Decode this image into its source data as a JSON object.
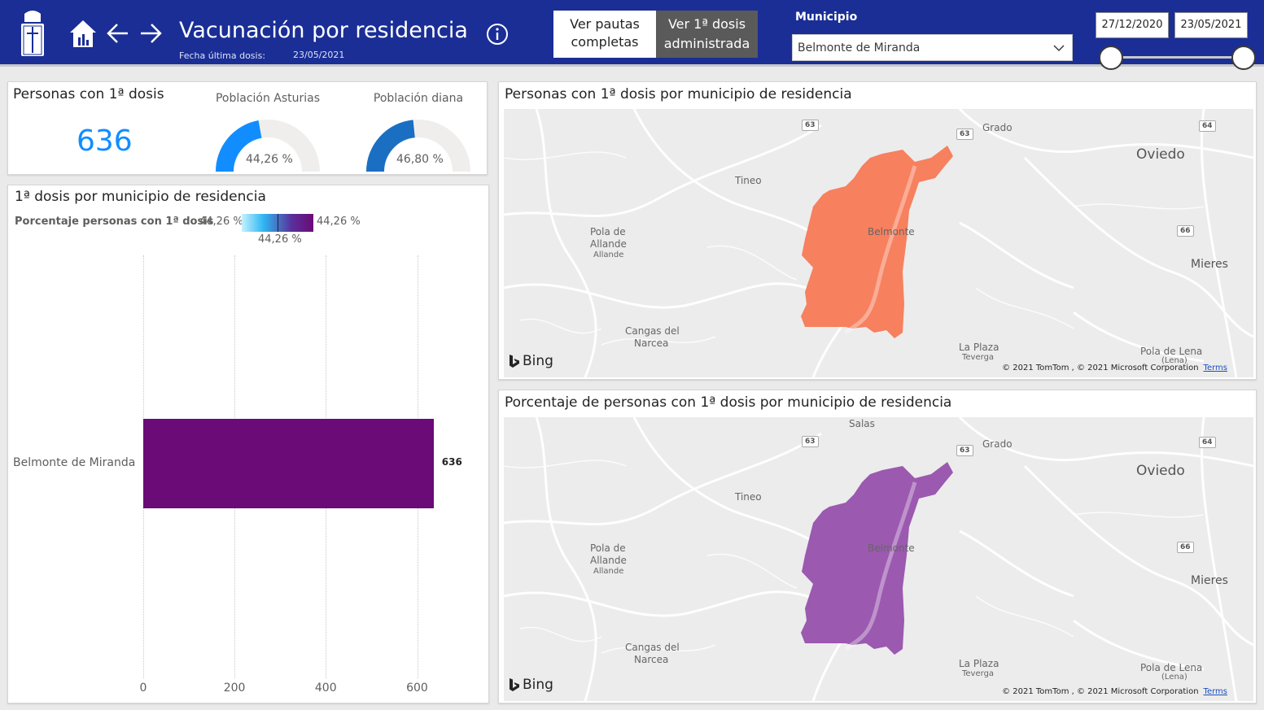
{
  "header": {
    "title": "Vacunación por residencia",
    "last_dose_label": "Fecha última dosis:",
    "last_dose_value": "23/05/2021",
    "btn_full_line1": "Ver pautas",
    "btn_full_line2": "completas",
    "btn_first_line1": "Ver 1ª dosis",
    "btn_first_line2": "administrada",
    "municipio_label": "Municipio",
    "municipio_value": "Belmonte de Miranda",
    "date_start": "27/12/2020",
    "date_end": "23/05/2021",
    "date_slider_start_fraction": 0.0,
    "date_slider_end_fraction": 1.0
  },
  "kpi": {
    "title": "Personas con 1ª dosis",
    "value": "636"
  },
  "gauges": [
    {
      "label": "Población Asturias",
      "value_text": "44,26 %",
      "fraction": 0.4426,
      "color": "#118dff"
    },
    {
      "label": "Población diana",
      "value_text": "46,80 %",
      "fraction": 0.468,
      "color": "#1a6fc2"
    }
  ],
  "bar_panel": {
    "title": "1ª dosis por municipio de residencia",
    "legend_title": "Porcentaje personas con 1ª dosis",
    "legend_min": "44,26 %",
    "legend_max": "44,26 %",
    "legend_mid": "44,26 %"
  },
  "chart_data": {
    "type": "bar",
    "orientation": "horizontal",
    "categories": [
      "Belmonte de Miranda"
    ],
    "values": [
      636
    ],
    "data_labels": [
      "636"
    ],
    "xticks": [
      "0",
      "200",
      "400",
      "600"
    ],
    "xlim": [
      0,
      640
    ],
    "bar_color": "#6b0b77",
    "grid": true
  },
  "maps": [
    {
      "title": "Personas con 1ª dosis por municipio de residencia",
      "fill_color": "#f7805e",
      "labels": {
        "grado": "Grado",
        "oviedo": "Oviedo",
        "tineo": "Tineo",
        "pola_allande_1": "Pola de",
        "pola_allande_2": "Allande",
        "allande": "Allande",
        "belmonte": "Belmonte",
        "mieres": "Mieres",
        "cangas_1": "Cangas del",
        "cangas_2": "Narcea",
        "la_plaza": "La Plaza",
        "teverga": "Teverga",
        "pola_lena": "Pola de Lena",
        "lena": "(Lena)",
        "r63a": "63",
        "r63b": "63",
        "r64": "64",
        "r66": "66"
      },
      "bing": "Bing",
      "copyright": "© 2021 TomTom , © 2021 Microsoft Corporation",
      "terms": "Terms"
    },
    {
      "title": "Porcentaje de personas con 1ª dosis por municipio de residencia",
      "fill_color": "#9b59b0",
      "labels": {
        "salas": "Salas",
        "grado": "Grado",
        "oviedo": "Oviedo",
        "tineo": "Tineo",
        "pola_allande_1": "Pola de",
        "pola_allande_2": "Allande",
        "allande": "Allande",
        "belmonte": "Belmonte",
        "mieres": "Mieres",
        "cangas_1": "Cangas del",
        "cangas_2": "Narcea",
        "la_plaza": "La Plaza",
        "teverga": "Teverga",
        "pola_lena": "Pola de Lena",
        "lena": "(Lena)",
        "r63a": "63",
        "r63b": "63",
        "r64": "64",
        "r66": "66"
      },
      "bing": "Bing",
      "copyright": "© 2021 TomTom , © 2021 Microsoft Corporation",
      "terms": "Terms"
    }
  ]
}
